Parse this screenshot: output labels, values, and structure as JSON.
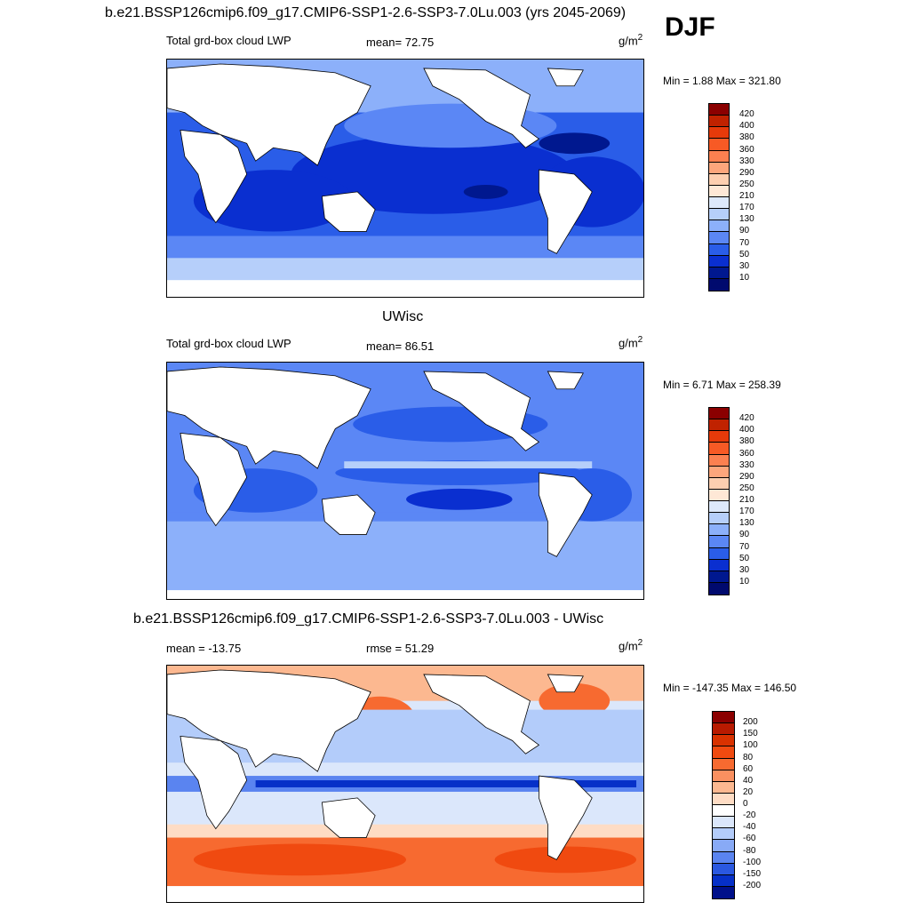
{
  "top_title": "b.e21.BSSP126cmip6.f09_g17.CMIP6-SSP1-2.6-SSP3-7.0Lu.003 (yrs 2045-2069)",
  "season": "DJF",
  "middle_title": "UWisc",
  "bottom_title": "b.e21.BSSP126cmip6.f09_g17.CMIP6-SSP1-2.6-SSP3-7.0Lu.003 - UWisc",
  "panels": [
    {
      "left_label": "Total grd-box cloud LWP",
      "center_label": "mean=  72.75",
      "units": "g/m",
      "units_sup": "2",
      "minmax": "Min =   1.88 Max = 321.80",
      "colorbar_labels": [
        "420",
        "400",
        "380",
        "360",
        "330",
        "290",
        "250",
        "210",
        "170",
        "130",
        "90",
        "70",
        "50",
        "30",
        "10"
      ]
    },
    {
      "left_label": "Total grd-box cloud LWP",
      "center_label": "mean=  86.51",
      "units": "g/m",
      "units_sup": "2",
      "minmax": "Min =   6.71 Max = 258.39",
      "colorbar_labels": [
        "420",
        "400",
        "380",
        "360",
        "330",
        "290",
        "250",
        "210",
        "170",
        "130",
        "90",
        "70",
        "50",
        "30",
        "10"
      ]
    },
    {
      "left_label": "mean = -13.75",
      "center_label": "rmse =  51.29",
      "units": "g/m",
      "units_sup": "2",
      "minmax": "Min = -147.35 Max = 146.50",
      "colorbar_labels": [
        "200",
        "150",
        "100",
        "80",
        "60",
        "40",
        "20",
        "0",
        "-20",
        "-40",
        "-60",
        "-80",
        "-100",
        "-150",
        "-200"
      ]
    }
  ],
  "colors": {
    "abs_scale": [
      "#8b0000",
      "#c02200",
      "#e63a0a",
      "#f75a25",
      "#fb8050",
      "#fca67c",
      "#fdcfb0",
      "#fee8d6",
      "#dde9fb",
      "#b6cffa",
      "#8cb0fa",
      "#5b87f5",
      "#2a5de8",
      "#0a2fd0",
      "#00188f",
      "#000a6e"
    ],
    "diff_scale": [
      "#8b0000",
      "#b81a00",
      "#d93200",
      "#f04a10",
      "#f76a30",
      "#fa9060",
      "#fcb890",
      "#fedcc4",
      "#ffffff",
      "#dbe7fb",
      "#b3ccfa",
      "#88aaf6",
      "#5a84f0",
      "#2a58e0",
      "#0630c8",
      "#00108a"
    ]
  }
}
